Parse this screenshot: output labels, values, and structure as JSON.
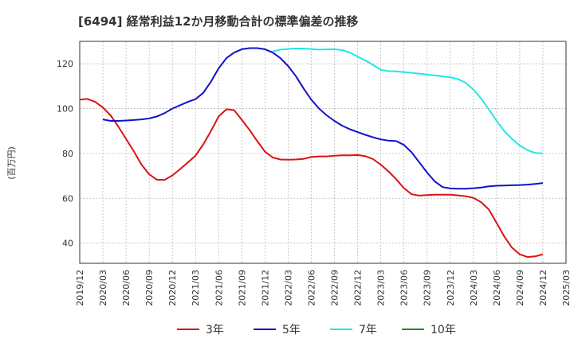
{
  "chart_data": {
    "type": "line",
    "title": "[6494]  経常利益12か月移動合計の標準偏差の推移",
    "ylabel": "(百万円)",
    "xlabel": "",
    "ylim": [
      31,
      130
    ],
    "yticks": [
      40,
      60,
      80,
      100,
      120
    ],
    "xlim": [
      "2019-12",
      "2025-03"
    ],
    "xticks": [
      "2019/12",
      "2020/03",
      "2020/06",
      "2020/09",
      "2020/12",
      "2021/03",
      "2021/06",
      "2021/09",
      "2021/12",
      "2022/03",
      "2022/06",
      "2022/09",
      "2022/12",
      "2023/03",
      "2023/06",
      "2023/09",
      "2023/12",
      "2024/03",
      "2024/06",
      "2024/09",
      "2024/12",
      "2025/03"
    ],
    "grid": true,
    "legend_position": "bottom",
    "series": [
      {
        "name": "3年",
        "color": "#dd1111",
        "x": [
          "2019-12",
          "2020-01",
          "2020-02",
          "2020-03",
          "2020-04",
          "2020-05",
          "2020-06",
          "2020-07",
          "2020-08",
          "2020-09",
          "2020-10",
          "2020-11",
          "2020-12",
          "2021-01",
          "2021-02",
          "2021-03",
          "2021-04",
          "2021-05",
          "2021-06",
          "2021-07",
          "2021-08",
          "2021-09",
          "2021-10",
          "2021-11",
          "2021-12",
          "2022-01",
          "2022-02",
          "2022-03",
          "2022-04",
          "2022-05",
          "2022-06",
          "2022-07",
          "2022-08",
          "2022-09",
          "2022-10",
          "2022-11",
          "2022-12",
          "2023-01",
          "2023-02",
          "2023-03",
          "2023-04",
          "2023-05",
          "2023-06",
          "2023-07",
          "2023-08",
          "2023-09",
          "2023-10",
          "2023-11",
          "2023-12",
          "2024-01",
          "2024-02",
          "2024-03",
          "2024-04",
          "2024-05",
          "2024-06",
          "2024-07",
          "2024-08",
          "2024-09",
          "2024-10",
          "2024-11",
          "2024-12"
        ],
        "values": [
          104,
          104.3,
          103,
          100.5,
          97,
          92,
          86.5,
          81,
          75,
          70.7,
          68.3,
          68.2,
          70.2,
          73,
          76,
          79,
          84,
          90,
          96.5,
          99.7,
          99.3,
          95,
          90.5,
          85.5,
          80.8,
          78.2,
          77.3,
          77.2,
          77.3,
          77.6,
          78.4,
          78.7,
          78.7,
          79,
          79.2,
          79.2,
          79.3,
          78.8,
          77.5,
          75,
          72,
          68.5,
          64.5,
          61.8,
          61.2,
          61.4,
          61.6,
          61.6,
          61.6,
          61.3,
          60.9,
          60.2,
          58.3,
          55,
          49,
          43,
          38,
          35,
          33.8,
          34.1,
          35
        ]
      },
      {
        "name": "5年",
        "color": "#1111cc",
        "x": [
          "2020-03",
          "2020-04",
          "2020-05",
          "2020-06",
          "2020-07",
          "2020-08",
          "2020-09",
          "2020-10",
          "2020-11",
          "2020-12",
          "2021-01",
          "2021-02",
          "2021-03",
          "2021-04",
          "2021-05",
          "2021-06",
          "2021-07",
          "2021-08",
          "2021-09",
          "2021-10",
          "2021-11",
          "2021-12",
          "2022-01",
          "2022-02",
          "2022-03",
          "2022-04",
          "2022-05",
          "2022-06",
          "2022-07",
          "2022-08",
          "2022-09",
          "2022-10",
          "2022-11",
          "2022-12",
          "2023-01",
          "2023-02",
          "2023-03",
          "2023-04",
          "2023-05",
          "2023-06",
          "2023-07",
          "2023-08",
          "2023-09",
          "2023-10",
          "2023-11",
          "2023-12",
          "2024-01",
          "2024-02",
          "2024-03",
          "2024-04",
          "2024-05",
          "2024-06",
          "2024-07",
          "2024-08",
          "2024-09",
          "2024-10",
          "2024-11",
          "2024-12"
        ],
        "values": [
          95.2,
          94.5,
          94.5,
          94.7,
          94.9,
          95.2,
          95.6,
          96.5,
          98,
          100,
          101.5,
          103,
          104.2,
          107,
          112,
          118,
          122.5,
          125,
          126.5,
          127,
          127,
          126.5,
          125,
          122.5,
          119,
          114.5,
          109,
          104,
          100,
          97,
          94.5,
          92.4,
          90.8,
          89.5,
          88.3,
          87.2,
          86.3,
          85.7,
          85.5,
          83.8,
          80.5,
          76,
          71.5,
          67.5,
          65,
          64.4,
          64.3,
          64.3,
          64.5,
          64.8,
          65.3,
          65.6,
          65.7,
          65.8,
          65.9,
          66.1,
          66.4,
          66.8
        ]
      },
      {
        "name": "7年",
        "color": "#22e6e6",
        "x": [
          "2022-01",
          "2022-02",
          "2022-03",
          "2022-04",
          "2022-05",
          "2022-06",
          "2022-07",
          "2022-08",
          "2022-09",
          "2022-10",
          "2022-11",
          "2022-12",
          "2023-01",
          "2023-02",
          "2023-03",
          "2023-04",
          "2023-05",
          "2023-06",
          "2023-07",
          "2023-08",
          "2023-09",
          "2023-10",
          "2023-11",
          "2023-12",
          "2024-01",
          "2024-02",
          "2024-03",
          "2024-04",
          "2024-05",
          "2024-06",
          "2024-07",
          "2024-08",
          "2024-09",
          "2024-10",
          "2024-11",
          "2024-12"
        ],
        "values": [
          125.5,
          126.3,
          126.6,
          126.8,
          126.8,
          126.6,
          126.3,
          126.4,
          126.5,
          126.1,
          125,
          123.2,
          121.5,
          119.5,
          117.3,
          116.7,
          116.6,
          116.3,
          116,
          115.6,
          115.2,
          114.8,
          114.4,
          114,
          113.2,
          111.5,
          108.5,
          104.5,
          99.7,
          94.5,
          90,
          86.5,
          83.5,
          81.5,
          80.2,
          80
        ]
      },
      {
        "name": "10年",
        "color": "#228822",
        "x": [],
        "values": []
      }
    ]
  }
}
